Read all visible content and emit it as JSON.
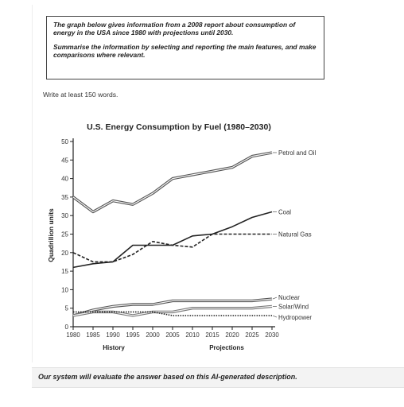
{
  "prompt": {
    "paragraph1": "The graph below gives information from a 2008 report about consumption of energy in the USA since 1980 with projections until 2030.",
    "paragraph2": "Summarise the information by selecting and reporting the main features, and make comparisons where relevant."
  },
  "instruction": "Write at least 150 words.",
  "footer": "Our system will evaluate the answer based on this AI-generated description.",
  "chart_data": {
    "type": "line",
    "title": "U.S. Energy Consumption by Fuel (1980–2030)",
    "ylabel": "Quadrillion units",
    "xlabel_history": "History",
    "xlabel_projections": "Projections",
    "ylim": [
      0,
      50
    ],
    "yticks": [
      0,
      5,
      10,
      15,
      20,
      25,
      30,
      35,
      40,
      45,
      50
    ],
    "x": [
      1980,
      1985,
      1990,
      1995,
      2000,
      2005,
      2010,
      2015,
      2020,
      2025,
      2030
    ],
    "series": [
      {
        "name": "Petrol and Oil",
        "style": "double",
        "color": "#555555",
        "values": [
          35,
          31,
          34,
          33,
          36,
          40,
          41,
          42,
          43,
          46,
          47
        ]
      },
      {
        "name": "Coal",
        "style": "solid",
        "color": "#222222",
        "values": [
          16,
          17,
          17.5,
          22,
          22,
          22,
          24.5,
          25,
          27,
          29.5,
          31
        ]
      },
      {
        "name": "Natural Gas",
        "style": "dashed",
        "color": "#222222",
        "values": [
          20,
          17.5,
          17.5,
          19.5,
          23,
          22,
          21.5,
          25,
          25,
          25,
          25
        ]
      },
      {
        "name": "Nuclear",
        "style": "double",
        "color": "#555555",
        "values": [
          3,
          4.5,
          5.5,
          6,
          6,
          7,
          7,
          7,
          7,
          7,
          7.5
        ]
      },
      {
        "name": "Solar/Wind",
        "style": "double",
        "color": "#777777",
        "values": [
          3,
          4,
          4,
          3,
          4,
          4,
          5,
          5,
          5,
          5,
          5.5
        ]
      },
      {
        "name": "Hydropower",
        "style": "dotted",
        "color": "#222222",
        "values": [
          4,
          4,
          4,
          4,
          4,
          3,
          3,
          3,
          3,
          3,
          3
        ]
      }
    ],
    "grid": false,
    "legend": "labels at line ends (right)"
  }
}
